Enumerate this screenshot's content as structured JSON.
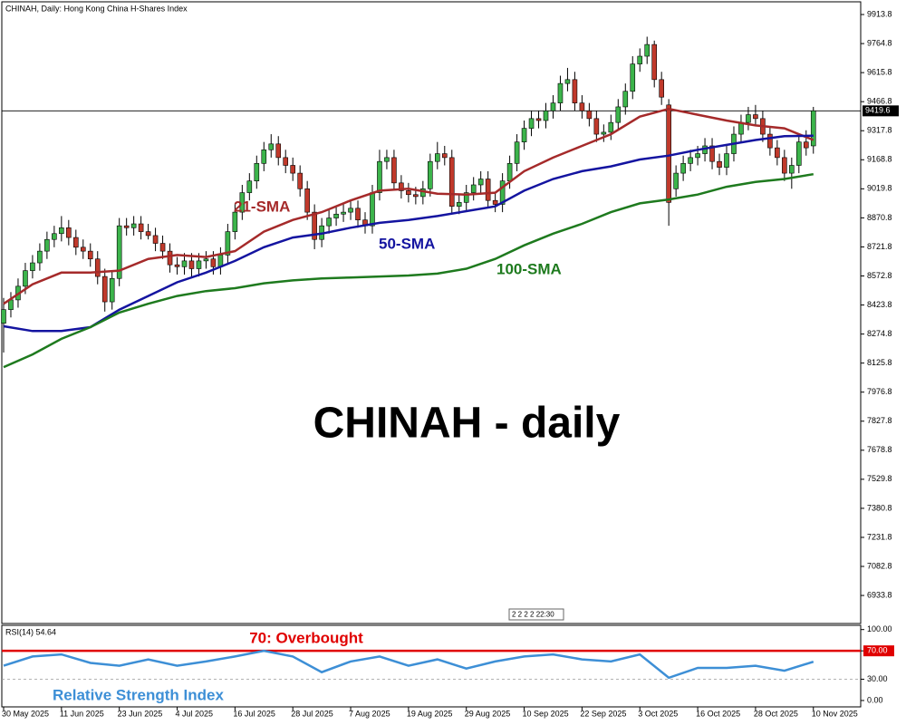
{
  "chart_data": [
    {
      "type": "candlestick",
      "title": "CHINAH, Daily:  Hong Kong China H-Shares Index",
      "caption": "CHINAH - daily",
      "period_marker": "2 2 2 2 22:30",
      "categories": [
        "30 May 2025",
        null,
        null,
        null,
        null,
        null,
        null,
        null,
        "11 Jun 2025",
        null,
        null,
        null,
        null,
        null,
        null,
        null,
        "23 Jun 2025",
        null,
        null,
        null,
        null,
        null,
        null,
        null,
        "4 Jul 2025",
        null,
        null,
        null,
        null,
        null,
        null,
        null,
        "16 Jul 2025",
        null,
        null,
        null,
        null,
        null,
        null,
        null,
        "28 Jul 2025",
        null,
        null,
        null,
        null,
        null,
        null,
        null,
        "7 Aug 2025",
        null,
        null,
        null,
        null,
        null,
        null,
        null,
        "19 Aug 2025",
        null,
        null,
        null,
        null,
        null,
        null,
        null,
        "29 Aug 2025",
        null,
        null,
        null,
        null,
        null,
        null,
        null,
        "10 Sep 2025",
        null,
        null,
        null,
        null,
        null,
        null,
        null,
        "22 Sep 2025",
        null,
        null,
        null,
        null,
        null,
        null,
        null,
        "3 Oct 2025",
        null,
        null,
        null,
        null,
        null,
        null,
        null,
        "16 Oct 2025",
        null,
        null,
        null,
        null,
        null,
        null,
        null,
        "28 Oct 2025",
        null,
        null,
        null,
        null,
        null,
        null,
        null,
        "10 Nov 2025"
      ],
      "open": [
        8330,
        8400,
        8450,
        8520,
        8600,
        8640,
        8700,
        8760,
        8790,
        8820,
        8770,
        8720,
        8700,
        8660,
        8570,
        8440,
        8560,
        8830,
        8820,
        8840,
        8800,
        8780,
        8740,
        8700,
        8630,
        8620,
        8650,
        8610,
        8650,
        8660,
        8620,
        8680,
        8800,
        8900,
        9000,
        9060,
        9150,
        9220,
        9250,
        9180,
        9140,
        9100,
        9020,
        8900,
        8760,
        8830,
        8870,
        8890,
        8900,
        8920,
        8860,
        8830,
        9000,
        9160,
        9180,
        9050,
        9010,
        8990,
        8980,
        9020,
        9160,
        9200,
        9180,
        8930,
        8950,
        9000,
        9040,
        9070,
        8960,
        8940,
        9060,
        9150,
        9260,
        9330,
        9380,
        9370,
        9420,
        9460,
        9560,
        9580,
        9460,
        9420,
        9380,
        9300,
        9310,
        9360,
        9440,
        9520,
        9660,
        9700,
        9760,
        9580,
        9450,
        9020,
        9100,
        9150,
        9180,
        9200,
        9240,
        9160,
        9130,
        9200,
        9300,
        9360,
        9400,
        9380,
        9300,
        9230,
        9180,
        9100,
        9140,
        9260,
        9240
      ],
      "high": [
        8460,
        8490,
        8560,
        8640,
        8680,
        8740,
        8800,
        8830,
        8880,
        8860,
        8810,
        8760,
        8740,
        8700,
        8610,
        8600,
        8870,
        8870,
        8880,
        8880,
        8840,
        8820,
        8780,
        8740,
        8670,
        8690,
        8690,
        8690,
        8700,
        8700,
        8720,
        8840,
        8940,
        9040,
        9100,
        9190,
        9260,
        9300,
        9290,
        9220,
        9180,
        9140,
        9060,
        8940,
        8870,
        8910,
        8930,
        8940,
        8960,
        8960,
        8900,
        9040,
        9220,
        9220,
        9220,
        9090,
        9050,
        9030,
        9060,
        9200,
        9260,
        9240,
        9220,
        8990,
        9040,
        9080,
        9110,
        9110,
        9000,
        9100,
        9190,
        9300,
        9370,
        9420,
        9420,
        9460,
        9500,
        9600,
        9640,
        9620,
        9500,
        9460,
        9420,
        9350,
        9400,
        9480,
        9560,
        9700,
        9740,
        9800,
        9780,
        9620,
        9480,
        9140,
        9190,
        9220,
        9240,
        9280,
        9280,
        9200,
        9240,
        9340,
        9400,
        9440,
        9450,
        9420,
        9340,
        9270,
        9220,
        9180,
        9300,
        9320,
        9440
      ],
      "low": [
        8180,
        8360,
        8410,
        8480,
        8560,
        8600,
        8660,
        8720,
        8750,
        8730,
        8680,
        8660,
        8620,
        8530,
        8390,
        8400,
        8520,
        8780,
        8780,
        8760,
        8760,
        8700,
        8660,
        8590,
        8580,
        8580,
        8570,
        8570,
        8610,
        8580,
        8580,
        8640,
        8760,
        8860,
        8960,
        9020,
        9110,
        9180,
        9140,
        9100,
        9060,
        8980,
        8860,
        8710,
        8720,
        8790,
        8830,
        8850,
        8860,
        8820,
        8790,
        8790,
        8960,
        9120,
        9010,
        8970,
        8950,
        8940,
        8940,
        8980,
        9120,
        9140,
        8890,
        8890,
        8910,
        8960,
        9000,
        8920,
        8900,
        8900,
        9020,
        9110,
        9220,
        9290,
        9330,
        9330,
        9380,
        9420,
        9520,
        9420,
        9380,
        9340,
        9260,
        9260,
        9270,
        9320,
        9400,
        9480,
        9620,
        9660,
        9540,
        9450,
        8830,
        8980,
        9060,
        9110,
        9140,
        9160,
        9120,
        9090,
        9090,
        9160,
        9260,
        9320,
        9340,
        9260,
        9190,
        9140,
        9060,
        9020,
        9100,
        9190,
        9200
      ],
      "close": [
        8400,
        8450,
        8520,
        8600,
        8640,
        8700,
        8760,
        8790,
        8820,
        8770,
        8720,
        8700,
        8660,
        8570,
        8440,
        8560,
        8830,
        8820,
        8840,
        8800,
        8780,
        8740,
        8700,
        8630,
        8620,
        8650,
        8610,
        8650,
        8660,
        8620,
        8680,
        8800,
        8900,
        9000,
        9060,
        9150,
        9220,
        9250,
        9180,
        9140,
        9100,
        9020,
        8900,
        8760,
        8830,
        8870,
        8890,
        8900,
        8920,
        8860,
        8830,
        9000,
        9160,
        9180,
        9050,
        9010,
        8990,
        8980,
        9020,
        9160,
        9200,
        9180,
        8930,
        8950,
        9000,
        9040,
        9070,
        8960,
        8940,
        9060,
        9150,
        9260,
        9330,
        9380,
        9370,
        9420,
        9460,
        9560,
        9580,
        9460,
        9420,
        9380,
        9300,
        9310,
        9360,
        9440,
        9520,
        9660,
        9700,
        9760,
        9580,
        9490,
        8950,
        9100,
        9150,
        9180,
        9200,
        9240,
        9160,
        9130,
        9200,
        9300,
        9360,
        9400,
        9380,
        9300,
        9230,
        9180,
        9100,
        9140,
        9260,
        9230,
        9420
      ],
      "up_color": "#3cb44b",
      "down_color": "#c0392b",
      "series": [
        {
          "name": "21-SMA",
          "color": "#a52a2a",
          "x": [
            0,
            4,
            8,
            12,
            16,
            20,
            24,
            28,
            32,
            36,
            40,
            44,
            48,
            52,
            56,
            60,
            64,
            68,
            72,
            76,
            80,
            84,
            88,
            92,
            96,
            100,
            104,
            108,
            112
          ],
          "values": [
            8430,
            8530,
            8590,
            8590,
            8600,
            8660,
            8680,
            8670,
            8700,
            8800,
            8860,
            8900,
            8960,
            9010,
            9020,
            8995,
            8990,
            9000,
            9110,
            9180,
            9240,
            9300,
            9390,
            9430,
            9400,
            9370,
            9345,
            9330,
            9270
          ]
        },
        {
          "name": "50-SMA",
          "color": "#1414a0",
          "x": [
            0,
            4,
            8,
            12,
            16,
            20,
            24,
            28,
            32,
            36,
            40,
            44,
            48,
            52,
            56,
            60,
            64,
            68,
            72,
            76,
            80,
            84,
            88,
            92,
            96,
            100,
            104,
            108,
            112
          ],
          "values": [
            8315,
            8290,
            8290,
            8310,
            8400,
            8470,
            8540,
            8590,
            8650,
            8720,
            8770,
            8790,
            8820,
            8845,
            8860,
            8880,
            8905,
            8930,
            9010,
            9070,
            9110,
            9135,
            9170,
            9190,
            9220,
            9245,
            9270,
            9290,
            9292
          ]
        },
        {
          "name": "100-SMA",
          "color": "#1e7a1e",
          "x": [
            0,
            4,
            8,
            12,
            16,
            20,
            24,
            28,
            32,
            36,
            40,
            44,
            48,
            52,
            56,
            60,
            64,
            68,
            72,
            76,
            80,
            84,
            88,
            92,
            96,
            100,
            104,
            108,
            112
          ],
          "values": [
            8105,
            8170,
            8250,
            8310,
            8385,
            8430,
            8470,
            8495,
            8510,
            8535,
            8550,
            8560,
            8565,
            8570,
            8575,
            8585,
            8610,
            8660,
            8730,
            8790,
            8840,
            8900,
            8945,
            8965,
            8990,
            9030,
            9055,
            9070,
            9095
          ]
        }
      ],
      "last_price": 9419.6,
      "ylim": [
        6790,
        9979
      ],
      "yticks": [
        9913.8,
        9764.8,
        9615.8,
        9466.8,
        9317.8,
        9168.8,
        9019.8,
        8870.8,
        8721.8,
        8572.8,
        8423.8,
        8274.8,
        8125.8,
        7976.8,
        7827.8,
        7678.8,
        7529.8,
        7380.8,
        7231.8,
        7082.8,
        6933.8
      ]
    },
    {
      "type": "line",
      "title": "RSI(14) 54.64",
      "series": [
        {
          "name": "Relative Strength Index",
          "color": "#3d8fd6",
          "x": [
            0,
            4,
            8,
            12,
            16,
            20,
            24,
            28,
            32,
            36,
            40,
            44,
            48,
            52,
            56,
            60,
            64,
            68,
            72,
            76,
            80,
            84,
            88,
            92,
            96,
            100,
            104,
            108,
            112
          ],
          "values": [
            49,
            62,
            65,
            53,
            49,
            58,
            49,
            55,
            62,
            70,
            62,
            40,
            55,
            62,
            49,
            58,
            45,
            55,
            62,
            65,
            58,
            55,
            65,
            32,
            46,
            46,
            49,
            42,
            54.64
          ]
        }
      ],
      "levels": [
        {
          "value": 70,
          "label": "70: Overbought",
          "color": "#e00000"
        }
      ],
      "ylim": [
        -9,
        106
      ],
      "yticks": [
        {
          "value": 100,
          "label": "100.00"
        },
        {
          "value": 70,
          "label": "70.00"
        },
        {
          "value": 30,
          "label": "30.00"
        },
        {
          "value": 0,
          "label": "0.00"
        }
      ]
    }
  ]
}
